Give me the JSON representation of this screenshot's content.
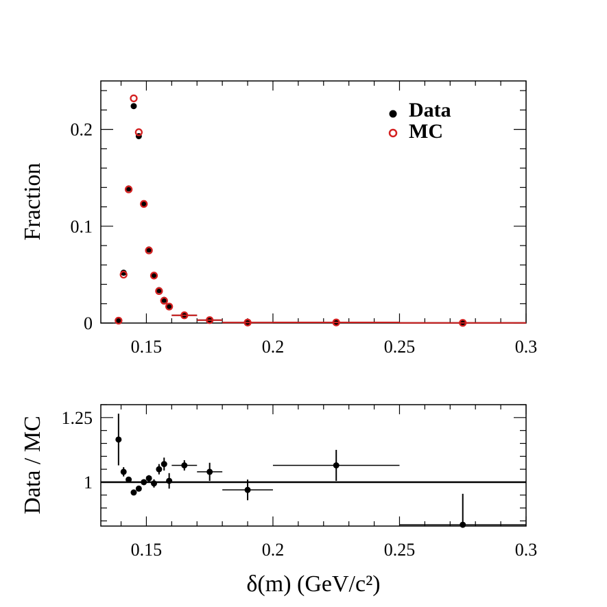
{
  "chart_data": [
    {
      "type": "scatter",
      "panel": "top",
      "xlabel": "",
      "ylabel": "Fraction",
      "xlim": [
        0.132,
        0.3
      ],
      "ylim": [
        0,
        0.25
      ],
      "x_ticks": [
        "0.15",
        "0.2",
        "0.25",
        "0.3"
      ],
      "y_ticks": [
        "0",
        "0.1",
        "0.2"
      ],
      "legend_placement": "top-right",
      "series": [
        {
          "name": "Data",
          "marker": "filled-circle",
          "color": "#000000",
          "points": [
            {
              "x": 0.139,
              "y": 0.003,
              "xerr": 0.001
            },
            {
              "x": 0.141,
              "y": 0.052,
              "xerr": 0.001
            },
            {
              "x": 0.143,
              "y": 0.139,
              "xerr": 0.001
            },
            {
              "x": 0.145,
              "y": 0.224,
              "xerr": 0.001
            },
            {
              "x": 0.147,
              "y": 0.193,
              "xerr": 0.001
            },
            {
              "x": 0.149,
              "y": 0.123,
              "xerr": 0.001
            },
            {
              "x": 0.151,
              "y": 0.076,
              "xerr": 0.001
            },
            {
              "x": 0.153,
              "y": 0.049,
              "xerr": 0.001
            },
            {
              "x": 0.155,
              "y": 0.034,
              "xerr": 0.001
            },
            {
              "x": 0.157,
              "y": 0.024,
              "xerr": 0.001
            },
            {
              "x": 0.159,
              "y": 0.017,
              "xerr": 0.001
            },
            {
              "x": 0.165,
              "y": 0.008,
              "xerr": 0.005
            },
            {
              "x": 0.175,
              "y": 0.003,
              "xerr": 0.005
            },
            {
              "x": 0.19,
              "y": 0.0005,
              "xerr": 0.01
            },
            {
              "x": 0.225,
              "y": 0.0006,
              "xerr": 0.025
            },
            {
              "x": 0.275,
              "y": 0.0002,
              "xerr": 0.025
            }
          ]
        },
        {
          "name": "MC",
          "marker": "open-circle",
          "color": "#d42020",
          "points": [
            {
              "x": 0.139,
              "y": 0.0025,
              "xerr": 0.001
            },
            {
              "x": 0.141,
              "y": 0.05,
              "xerr": 0.001
            },
            {
              "x": 0.143,
              "y": 0.138,
              "xerr": 0.001
            },
            {
              "x": 0.145,
              "y": 0.232,
              "xerr": 0.001
            },
            {
              "x": 0.147,
              "y": 0.197,
              "xerr": 0.001
            },
            {
              "x": 0.149,
              "y": 0.123,
              "xerr": 0.001
            },
            {
              "x": 0.151,
              "y": 0.075,
              "xerr": 0.001
            },
            {
              "x": 0.153,
              "y": 0.049,
              "xerr": 0.001
            },
            {
              "x": 0.155,
              "y": 0.033,
              "xerr": 0.001
            },
            {
              "x": 0.157,
              "y": 0.023,
              "xerr": 0.001
            },
            {
              "x": 0.159,
              "y": 0.017,
              "xerr": 0.001
            },
            {
              "x": 0.165,
              "y": 0.008,
              "xerr": 0.005
            },
            {
              "x": 0.175,
              "y": 0.003,
              "xerr": 0.005
            },
            {
              "x": 0.19,
              "y": 0.0005,
              "xerr": 0.01
            },
            {
              "x": 0.225,
              "y": 0.0006,
              "xerr": 0.025
            },
            {
              "x": 0.275,
              "y": 0.0002,
              "xerr": 0.025
            }
          ]
        }
      ]
    },
    {
      "type": "scatter",
      "panel": "bottom",
      "xlabel": "δ(m) (GeV/c²)",
      "ylabel": "Data / MC",
      "xlim": [
        0.132,
        0.3
      ],
      "ylim": [
        0.83,
        1.3
      ],
      "x_ticks": [
        "0.15",
        "0.2",
        "0.25",
        "0.3"
      ],
      "y_ticks": [
        "1",
        "1.25"
      ],
      "reference_line": 1,
      "series": [
        {
          "name": "Data / MC",
          "marker": "filled-circle",
          "color": "#000000",
          "points": [
            {
              "x": 0.139,
              "y": 1.165,
              "xerr": 0.001,
              "yerr": 0.1
            },
            {
              "x": 0.141,
              "y": 1.04,
              "xerr": 0.001,
              "yerr": 0.018
            },
            {
              "x": 0.143,
              "y": 1.01,
              "xerr": 0.001,
              "yerr": 0.008
            },
            {
              "x": 0.145,
              "y": 0.96,
              "xerr": 0.001,
              "yerr": 0.008
            },
            {
              "x": 0.147,
              "y": 0.975,
              "xerr": 0.001,
              "yerr": 0.008
            },
            {
              "x": 0.149,
              "y": 1.0,
              "xerr": 0.001,
              "yerr": 0.01
            },
            {
              "x": 0.151,
              "y": 1.015,
              "xerr": 0.001,
              "yerr": 0.012
            },
            {
              "x": 0.153,
              "y": 0.995,
              "xerr": 0.001,
              "yerr": 0.016
            },
            {
              "x": 0.155,
              "y": 1.05,
              "xerr": 0.001,
              "yerr": 0.02
            },
            {
              "x": 0.157,
              "y": 1.07,
              "xerr": 0.001,
              "yerr": 0.025
            },
            {
              "x": 0.159,
              "y": 1.005,
              "xerr": 0.001,
              "yerr": 0.03
            },
            {
              "x": 0.165,
              "y": 1.065,
              "xerr": 0.005,
              "yerr": 0.02
            },
            {
              "x": 0.175,
              "y": 1.04,
              "xerr": 0.005,
              "yerr": 0.035
            },
            {
              "x": 0.19,
              "y": 0.97,
              "xerr": 0.01,
              "yerr": 0.04
            },
            {
              "x": 0.225,
              "y": 1.065,
              "xerr": 0.025,
              "yerr": 0.06
            },
            {
              "x": 0.275,
              "y": 0.835,
              "xerr": 0.025,
              "yerr": 0.12
            }
          ]
        }
      ]
    }
  ]
}
